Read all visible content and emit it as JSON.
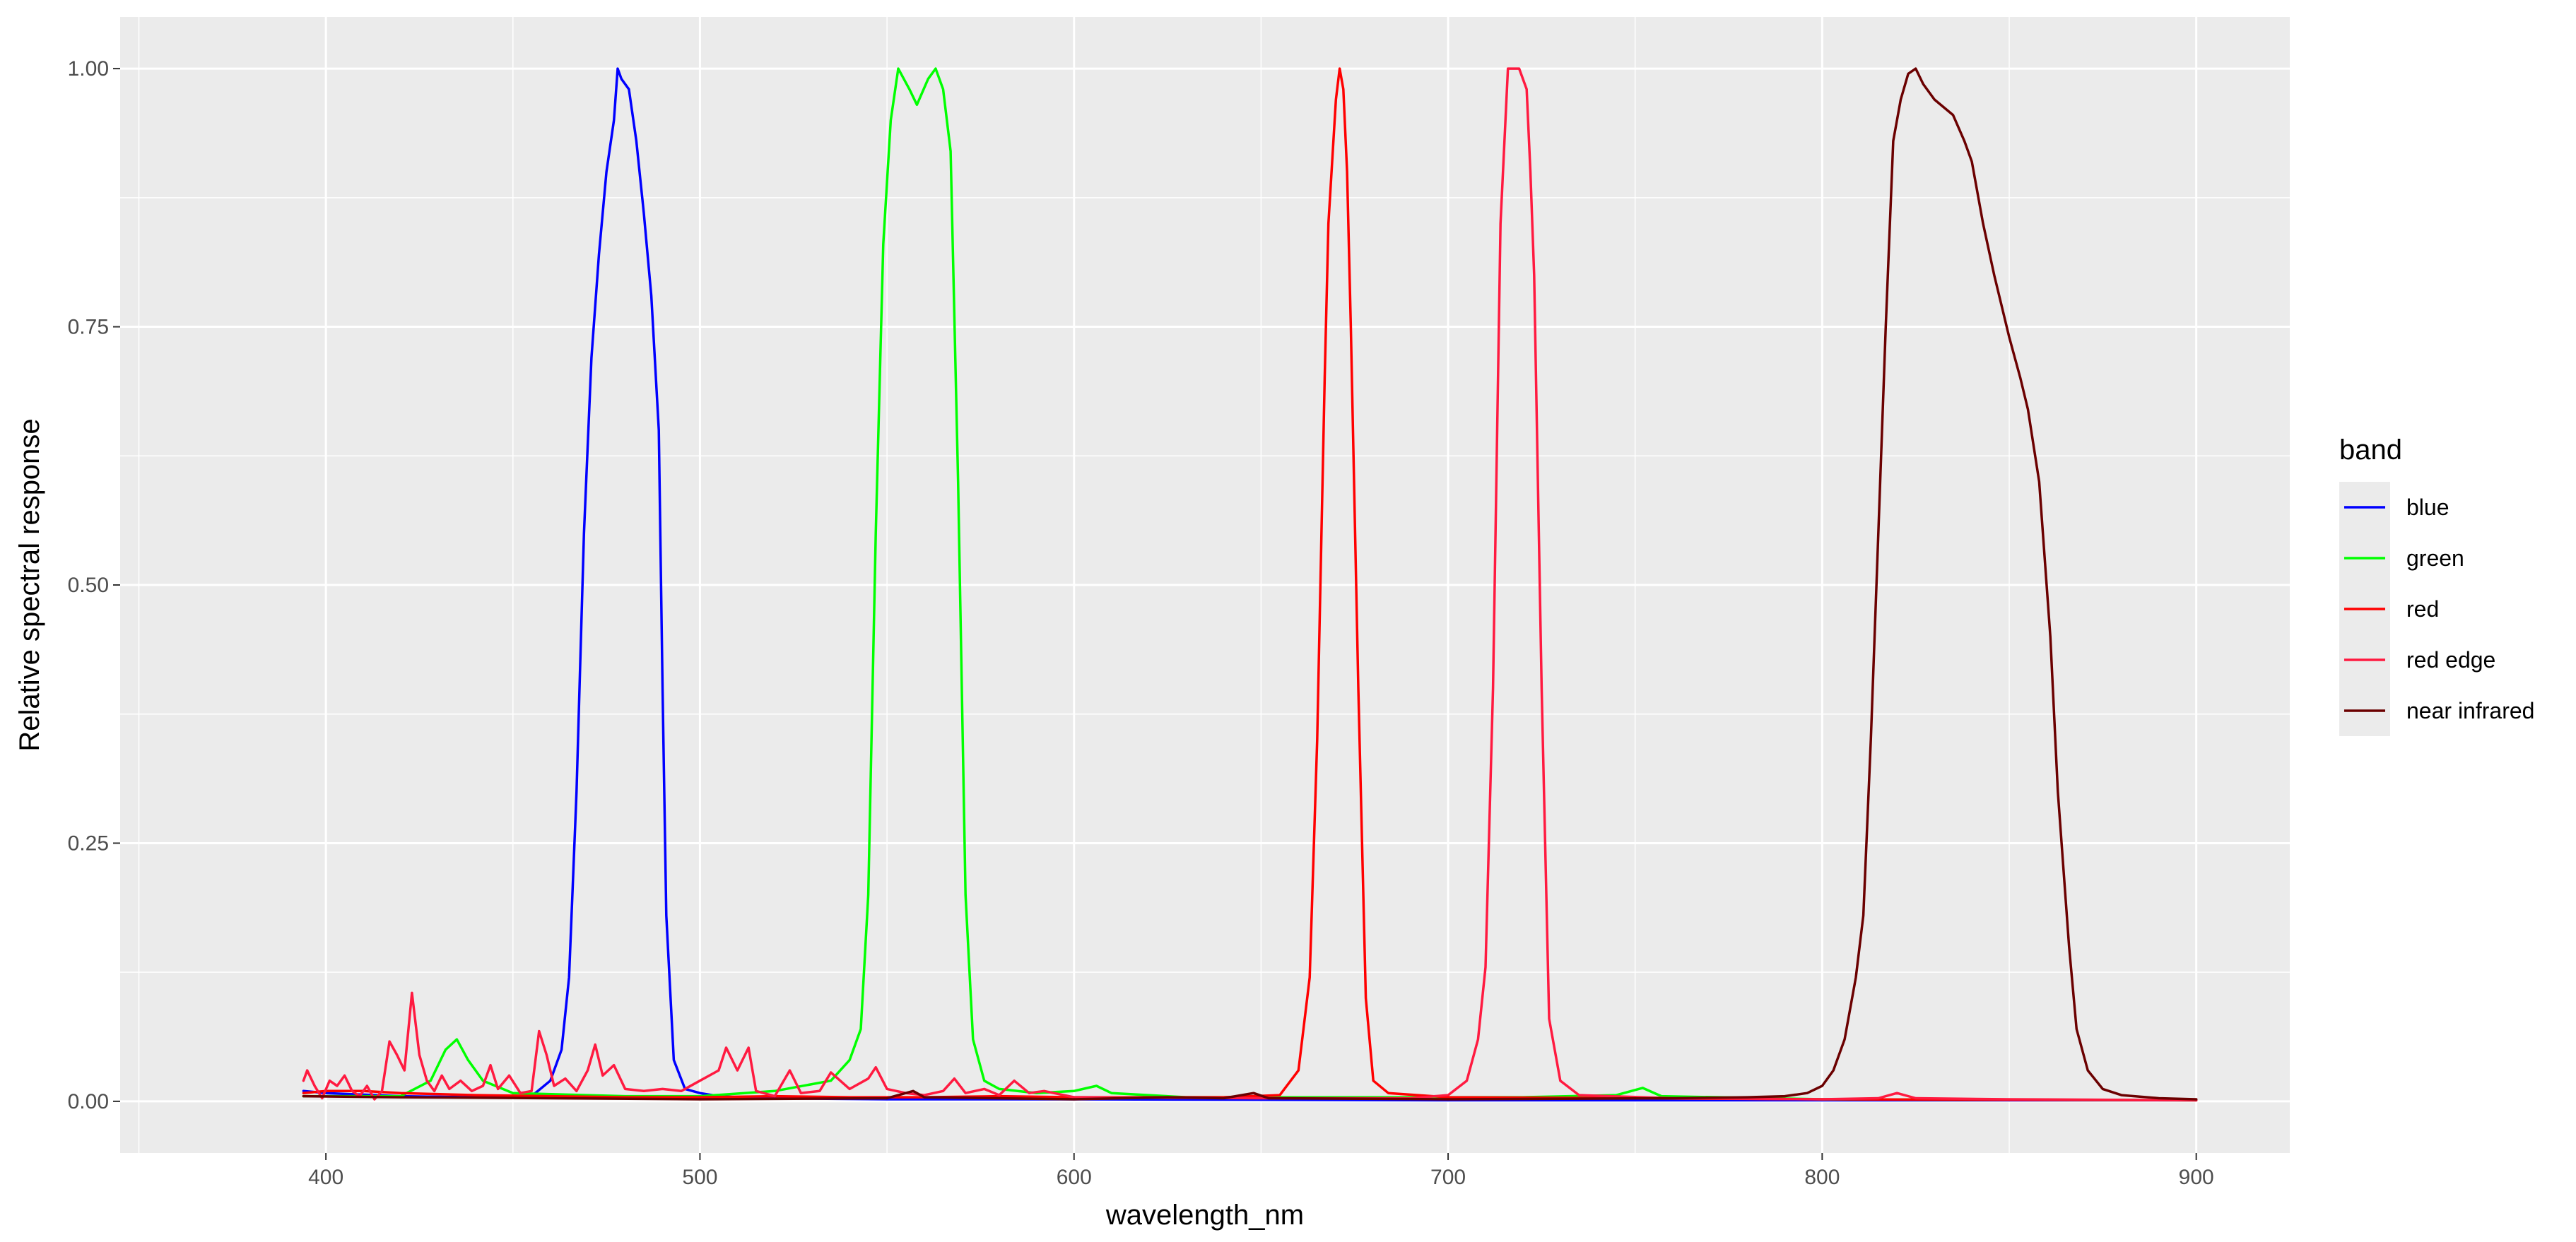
{
  "chart_data": {
    "type": "line",
    "title": "",
    "xlabel": "wavelength_nm",
    "ylabel": "Relative spectral response",
    "xlim": [
      345,
      925
    ],
    "ylim": [
      -0.05,
      1.05
    ],
    "x_ticks": [
      400,
      500,
      600,
      700,
      800,
      900
    ],
    "x_tick_labels": [
      "400",
      "500",
      "600",
      "700",
      "800",
      "900"
    ],
    "y_ticks": [
      0,
      0.25,
      0.5,
      0.75,
      1.0
    ],
    "y_tick_labels": [
      "0.00",
      "0.25",
      "0.50",
      "0.75",
      "1.00"
    ],
    "grid": true,
    "legend": {
      "title": "band",
      "position": "right"
    },
    "series": [
      {
        "name": "blue",
        "color": "#0000ff",
        "points": [
          [
            394,
            0.01
          ],
          [
            400,
            0.008
          ],
          [
            420,
            0.005
          ],
          [
            440,
            0.004
          ],
          [
            455,
            0.005
          ],
          [
            460,
            0.02
          ],
          [
            463,
            0.05
          ],
          [
            465,
            0.12
          ],
          [
            467,
            0.3
          ],
          [
            469,
            0.55
          ],
          [
            471,
            0.72
          ],
          [
            473,
            0.82
          ],
          [
            475,
            0.9
          ],
          [
            477,
            0.95
          ],
          [
            478,
            1.0
          ],
          [
            479,
            0.99
          ],
          [
            481,
            0.98
          ],
          [
            483,
            0.93
          ],
          [
            485,
            0.86
          ],
          [
            487,
            0.78
          ],
          [
            489,
            0.65
          ],
          [
            490,
            0.4
          ],
          [
            491,
            0.18
          ],
          [
            493,
            0.04
          ],
          [
            496,
            0.012
          ],
          [
            500,
            0.008
          ],
          [
            505,
            0.005
          ],
          [
            510,
            0.004
          ],
          [
            520,
            0.003
          ],
          [
            550,
            0.002
          ],
          [
            600,
            0.002
          ],
          [
            700,
            0.001
          ],
          [
            800,
            0.001
          ],
          [
            900,
            0.001
          ]
        ]
      },
      {
        "name": "green",
        "color": "#00ff00",
        "points": [
          [
            394,
            0.005
          ],
          [
            420,
            0.005
          ],
          [
            428,
            0.02
          ],
          [
            432,
            0.05
          ],
          [
            435,
            0.06
          ],
          [
            438,
            0.04
          ],
          [
            442,
            0.02
          ],
          [
            450,
            0.008
          ],
          [
            480,
            0.005
          ],
          [
            500,
            0.005
          ],
          [
            520,
            0.01
          ],
          [
            535,
            0.02
          ],
          [
            540,
            0.04
          ],
          [
            543,
            0.07
          ],
          [
            545,
            0.2
          ],
          [
            547,
            0.55
          ],
          [
            549,
            0.83
          ],
          [
            551,
            0.95
          ],
          [
            553,
            1.0
          ],
          [
            556,
            0.98
          ],
          [
            558,
            0.965
          ],
          [
            561,
            0.99
          ],
          [
            563,
            1.0
          ],
          [
            565,
            0.98
          ],
          [
            567,
            0.92
          ],
          [
            569,
            0.6
          ],
          [
            571,
            0.2
          ],
          [
            573,
            0.06
          ],
          [
            576,
            0.02
          ],
          [
            580,
            0.012
          ],
          [
            590,
            0.008
          ],
          [
            600,
            0.01
          ],
          [
            606,
            0.015
          ],
          [
            610,
            0.008
          ],
          [
            630,
            0.004
          ],
          [
            680,
            0.004
          ],
          [
            720,
            0.004
          ],
          [
            745,
            0.006
          ],
          [
            752,
            0.013
          ],
          [
            757,
            0.005
          ],
          [
            800,
            0.002
          ],
          [
            900,
            0.001
          ]
        ]
      },
      {
        "name": "red",
        "color": "#ff0000",
        "points": [
          [
            394,
            0.008
          ],
          [
            400,
            0.01
          ],
          [
            410,
            0.01
          ],
          [
            420,
            0.008
          ],
          [
            440,
            0.006
          ],
          [
            460,
            0.005
          ],
          [
            480,
            0.004
          ],
          [
            500,
            0.004
          ],
          [
            520,
            0.005
          ],
          [
            540,
            0.004
          ],
          [
            560,
            0.004
          ],
          [
            580,
            0.005
          ],
          [
            600,
            0.004
          ],
          [
            640,
            0.004
          ],
          [
            655,
            0.006
          ],
          [
            660,
            0.03
          ],
          [
            663,
            0.12
          ],
          [
            665,
            0.35
          ],
          [
            667,
            0.7
          ],
          [
            668,
            0.85
          ],
          [
            670,
            0.97
          ],
          [
            671,
            1.0
          ],
          [
            672,
            0.98
          ],
          [
            673,
            0.9
          ],
          [
            674,
            0.75
          ],
          [
            676,
            0.4
          ],
          [
            678,
            0.1
          ],
          [
            680,
            0.02
          ],
          [
            684,
            0.008
          ],
          [
            700,
            0.004
          ],
          [
            750,
            0.003
          ],
          [
            800,
            0.002
          ],
          [
            900,
            0.001
          ]
        ]
      },
      {
        "name": "red edge",
        "color": "#ff1a40",
        "points": [
          [
            394,
            0.02
          ],
          [
            395,
            0.03
          ],
          [
            397,
            0.015
          ],
          [
            399,
            0.003
          ],
          [
            401,
            0.02
          ],
          [
            403,
            0.015
          ],
          [
            405,
            0.025
          ],
          [
            407,
            0.01
          ],
          [
            409,
            0.005
          ],
          [
            411,
            0.015
          ],
          [
            413,
            0.002
          ],
          [
            415,
            0.01
          ],
          [
            417,
            0.058
          ],
          [
            419,
            0.045
          ],
          [
            421,
            0.03
          ],
          [
            423,
            0.105
          ],
          [
            425,
            0.045
          ],
          [
            427,
            0.02
          ],
          [
            429,
            0.01
          ],
          [
            431,
            0.025
          ],
          [
            433,
            0.012
          ],
          [
            436,
            0.02
          ],
          [
            439,
            0.01
          ],
          [
            442,
            0.015
          ],
          [
            444,
            0.035
          ],
          [
            446,
            0.012
          ],
          [
            449,
            0.025
          ],
          [
            452,
            0.008
          ],
          [
            455,
            0.01
          ],
          [
            457,
            0.068
          ],
          [
            459,
            0.045
          ],
          [
            461,
            0.015
          ],
          [
            464,
            0.022
          ],
          [
            467,
            0.01
          ],
          [
            470,
            0.03
          ],
          [
            472,
            0.055
          ],
          [
            474,
            0.025
          ],
          [
            477,
            0.035
          ],
          [
            480,
            0.012
          ],
          [
            485,
            0.01
          ],
          [
            490,
            0.012
          ],
          [
            495,
            0.01
          ],
          [
            500,
            0.02
          ],
          [
            505,
            0.03
          ],
          [
            507,
            0.052
          ],
          [
            510,
            0.03
          ],
          [
            513,
            0.052
          ],
          [
            515,
            0.01
          ],
          [
            520,
            0.005
          ],
          [
            524,
            0.03
          ],
          [
            527,
            0.008
          ],
          [
            532,
            0.01
          ],
          [
            535,
            0.028
          ],
          [
            540,
            0.012
          ],
          [
            545,
            0.022
          ],
          [
            547,
            0.033
          ],
          [
            550,
            0.012
          ],
          [
            555,
            0.008
          ],
          [
            560,
            0.006
          ],
          [
            565,
            0.01
          ],
          [
            568,
            0.022
          ],
          [
            571,
            0.008
          ],
          [
            576,
            0.012
          ],
          [
            580,
            0.006
          ],
          [
            584,
            0.02
          ],
          [
            588,
            0.008
          ],
          [
            592,
            0.01
          ],
          [
            600,
            0.004
          ],
          [
            650,
            0.003
          ],
          [
            690,
            0.003
          ],
          [
            700,
            0.006
          ],
          [
            705,
            0.02
          ],
          [
            708,
            0.06
          ],
          [
            710,
            0.13
          ],
          [
            712,
            0.4
          ],
          [
            714,
            0.85
          ],
          [
            716,
            1.0
          ],
          [
            719,
            1.0
          ],
          [
            721,
            0.98
          ],
          [
            722,
            0.9
          ],
          [
            723,
            0.8
          ],
          [
            725,
            0.4
          ],
          [
            727,
            0.08
          ],
          [
            730,
            0.02
          ],
          [
            735,
            0.006
          ],
          [
            760,
            0.003
          ],
          [
            800,
            0.002
          ],
          [
            815,
            0.003
          ],
          [
            820,
            0.008
          ],
          [
            825,
            0.003
          ],
          [
            850,
            0.002
          ],
          [
            900,
            0.001
          ]
        ]
      },
      {
        "name": "near infrared",
        "color": "#6b0000",
        "points": [
          [
            394,
            0.005
          ],
          [
            420,
            0.004
          ],
          [
            460,
            0.003
          ],
          [
            500,
            0.002
          ],
          [
            550,
            0.003
          ],
          [
            557,
            0.01
          ],
          [
            560,
            0.004
          ],
          [
            600,
            0.002
          ],
          [
            625,
            0.004
          ],
          [
            640,
            0.003
          ],
          [
            648,
            0.008
          ],
          [
            652,
            0.003
          ],
          [
            700,
            0.002
          ],
          [
            760,
            0.003
          ],
          [
            780,
            0.004
          ],
          [
            790,
            0.005
          ],
          [
            796,
            0.008
          ],
          [
            800,
            0.015
          ],
          [
            803,
            0.03
          ],
          [
            806,
            0.06
          ],
          [
            809,
            0.12
          ],
          [
            811,
            0.18
          ],
          [
            813,
            0.35
          ],
          [
            815,
            0.55
          ],
          [
            817,
            0.75
          ],
          [
            819,
            0.93
          ],
          [
            821,
            0.97
          ],
          [
            823,
            0.995
          ],
          [
            825,
            1.0
          ],
          [
            827,
            0.985
          ],
          [
            830,
            0.97
          ],
          [
            835,
            0.955
          ],
          [
            838,
            0.93
          ],
          [
            840,
            0.91
          ],
          [
            843,
            0.85
          ],
          [
            846,
            0.8
          ],
          [
            850,
            0.74
          ],
          [
            853,
            0.7
          ],
          [
            855,
            0.67
          ],
          [
            858,
            0.6
          ],
          [
            861,
            0.45
          ],
          [
            863,
            0.3
          ],
          [
            866,
            0.15
          ],
          [
            868,
            0.07
          ],
          [
            871,
            0.03
          ],
          [
            875,
            0.012
          ],
          [
            880,
            0.006
          ],
          [
            890,
            0.003
          ],
          [
            900,
            0.002
          ]
        ]
      }
    ]
  }
}
